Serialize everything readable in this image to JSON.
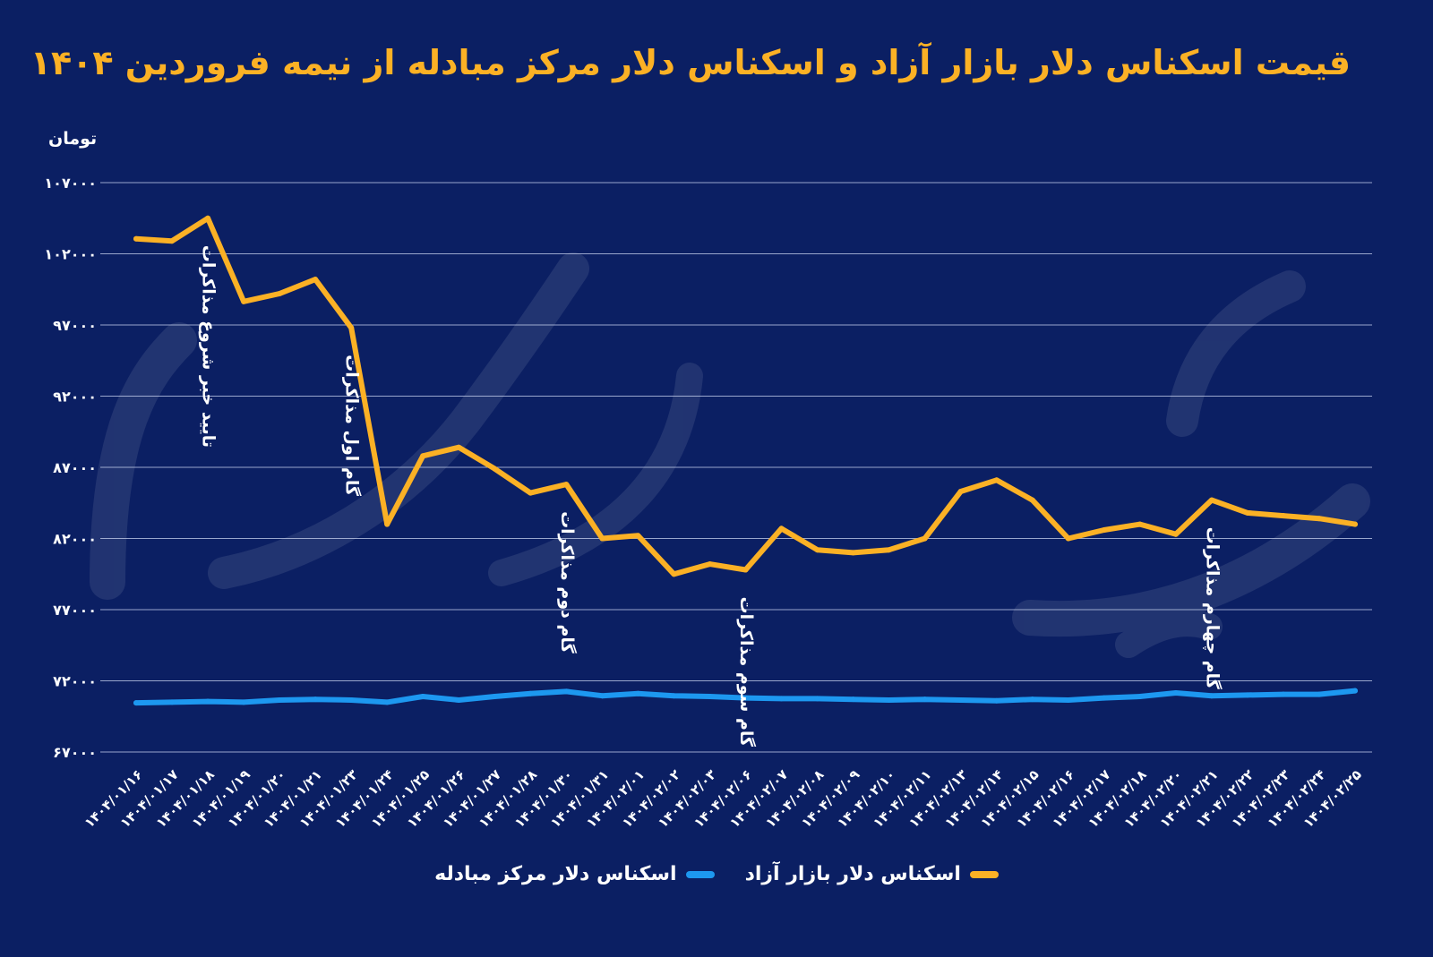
{
  "chart_data": {
    "type": "line",
    "title": "قیمت اسکناس دلار بازار آزاد و اسکناس دلار مرکز مبادله از نیمه فروردین ۱۴۰۴",
    "ylabel": "تومان",
    "xlabel": "",
    "ylim": [
      67000,
      107000
    ],
    "yticks": [
      67000,
      72000,
      77000,
      82000,
      87000,
      92000,
      97000,
      102000,
      107000
    ],
    "ytick_labels": [
      "۶۷۰۰۰",
      "۷۲۰۰۰",
      "۷۷۰۰۰",
      "۸۲۰۰۰",
      "۸۷۰۰۰",
      "۹۲۰۰۰",
      "۹۷۰۰۰",
      "۱۰۲۰۰۰",
      "۱۰۷۰۰۰"
    ],
    "grid": true,
    "legend_position": "bottom",
    "categories": [
      "۱۴۰۴/۰۱/۱۶",
      "۱۴۰۴/۰۱/۱۷",
      "۱۴۰۴/۰۱/۱۸",
      "۱۴۰۴/۰۱/۱۹",
      "۱۴۰۴/۰۱/۲۰",
      "۱۴۰۴/۰۱/۲۱",
      "۱۴۰۴/۰۱/۲۳",
      "۱۴۰۴/۰۱/۲۴",
      "۱۴۰۴/۰۱/۲۵",
      "۱۴۰۴/۰۱/۲۶",
      "۱۴۰۴/۰۱/۲۷",
      "۱۴۰۴/۰۱/۲۸",
      "۱۴۰۴/۰۱/۳۰",
      "۱۴۰۴/۰۱/۳۱",
      "۱۴۰۴/۰۲/۰۱",
      "۱۴۰۴/۰۲/۰۲",
      "۱۴۰۴/۰۲/۰۳",
      "۱۴۰۴/۰۲/۰۶",
      "۱۴۰۴/۰۲/۰۷",
      "۱۴۰۴/۰۲/۰۸",
      "۱۴۰۴/۰۲/۰۹",
      "۱۴۰۴/۰۲/۱۰",
      "۱۴۰۴/۰۲/۱۱",
      "۱۴۰۴/۰۲/۱۳",
      "۱۴۰۴/۰۲/۱۴",
      "۱۴۰۴/۰۲/۱۵",
      "۱۴۰۴/۰۲/۱۶",
      "۱۴۰۴/۰۲/۱۷",
      "۱۴۰۴/۰۲/۱۸",
      "۱۴۰۴/۰۲/۲۰",
      "۱۴۰۴/۰۲/۲۱",
      "۱۴۰۴/۰۲/۲۲",
      "۱۴۰۴/۰۲/۲۳",
      "۱۴۰۴/۰۲/۲۴",
      "۱۴۰۴/۰۲/۲۵"
    ],
    "series": [
      {
        "name": "اسکناس دلار بازار آزاد",
        "color": "#fbb125",
        "values": [
          103050,
          102900,
          104500,
          98650,
          99200,
          100200,
          96800,
          83000,
          87800,
          88400,
          86900,
          85200,
          85800,
          82000,
          82200,
          79500,
          80200,
          79800,
          82700,
          81200,
          81000,
          81200,
          82000,
          85300,
          86100,
          84700,
          82000,
          82600,
          83000,
          82300,
          84700,
          83800,
          83600,
          83400,
          83000
        ]
      },
      {
        "name": "اسکناس دلار مرکز مبادله",
        "color": "#1d98f0",
        "values": [
          70450,
          70500,
          70550,
          70500,
          70650,
          70700,
          70650,
          70500,
          70900,
          70650,
          70900,
          71100,
          71250,
          70950,
          71100,
          70950,
          70900,
          70800,
          70750,
          70750,
          70700,
          70650,
          70700,
          70650,
          70600,
          70700,
          70650,
          70800,
          70900,
          71150,
          70950,
          71000,
          71050,
          71050,
          71300
        ]
      }
    ],
    "annotations": [
      {
        "text": "تایید خبر شروع مذاکرات",
        "index": 2
      },
      {
        "text": "گام اول مذاکرات",
        "index": 6
      },
      {
        "text": "گام دوم مذاکرات",
        "index": 12
      },
      {
        "text": "گام سوم مذاکرات",
        "index": 17
      },
      {
        "text": "گام چهارم مذاکرات",
        "index": 30
      }
    ]
  }
}
